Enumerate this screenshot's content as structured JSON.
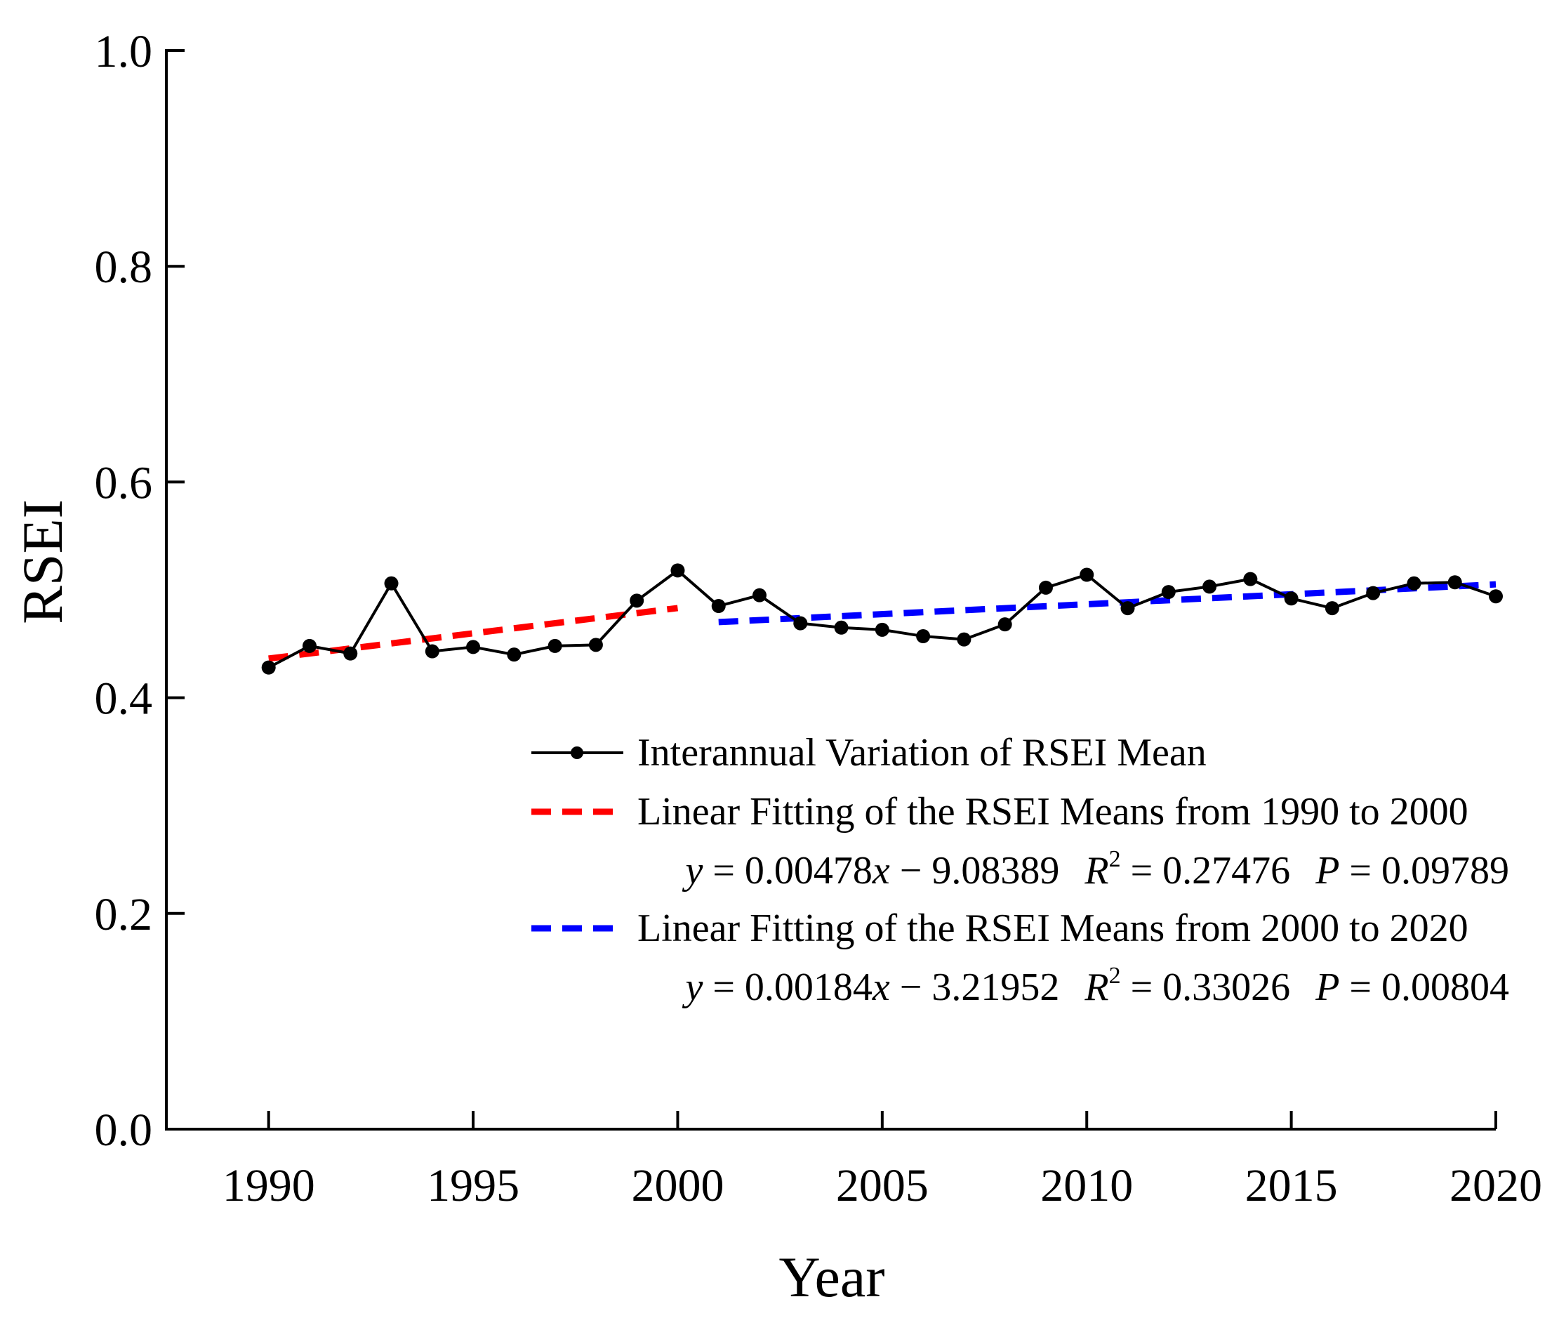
{
  "chart_data": {
    "type": "line",
    "title": "",
    "xlabel": "Year",
    "ylabel": "RSEI",
    "xlim": [
      1987.5,
      2020
    ],
    "ylim": [
      0.0,
      1.0
    ],
    "x_ticks": [
      "1990",
      "1995",
      "2000",
      "2005",
      "2010",
      "2015",
      "2020"
    ],
    "y_ticks": [
      "0.0",
      "0.2",
      "0.4",
      "0.6",
      "0.8",
      "1.0"
    ],
    "grid": false,
    "legend_position": "lower-right",
    "series": [
      {
        "name": "Interannual Variation of RSEI Mean",
        "style": "solid-with-markers",
        "color": "#000000",
        "x": [
          1990,
          1991,
          1992,
          1993,
          1994,
          1995,
          1996,
          1997,
          1998,
          1999,
          2000,
          2001,
          2002,
          2003,
          2004,
          2005,
          2006,
          2007,
          2008,
          2009,
          2010,
          2011,
          2012,
          2013,
          2014,
          2015,
          2016,
          2017,
          2018,
          2019,
          2020
        ],
        "values": [
          0.428,
          0.448,
          0.441,
          0.506,
          0.443,
          0.447,
          0.44,
          0.448,
          0.449,
          0.49,
          0.518,
          0.485,
          0.495,
          0.469,
          0.465,
          0.463,
          0.457,
          0.454,
          0.468,
          0.502,
          0.514,
          0.483,
          0.498,
          0.503,
          0.51,
          0.492,
          0.483,
          0.497,
          0.506,
          0.507,
          0.494
        ]
      },
      {
        "name": "Linear Fitting of the RSEI Means from 1990 to 2000",
        "style": "dashed",
        "color": "#ff0000",
        "x": [
          1990,
          2000
        ],
        "values": [
          0.4363,
          0.4831
        ],
        "equation": {
          "y": "y",
          "x": "x",
          "formula": " = 0.00478",
          "intercept": " − 9.08389",
          "r_label": "R",
          "r_sup": "2",
          "r_value": " = 0.27476",
          "p_label": "P",
          "p_value": " = 0.09789"
        }
      },
      {
        "name": "Linear Fitting of the RSEI Means from 2000 to 2020",
        "style": "dashed",
        "color": "#0000ff",
        "x": [
          2001,
          2020
        ],
        "values": [
          0.4701,
          0.5051
        ],
        "equation": {
          "y": "y",
          "x": "x",
          "formula": " = 0.00184",
          "intercept": " − 3.21952",
          "r_label": "R",
          "r_sup": "2",
          "r_value": " = 0.33026",
          "p_label": "P",
          "p_value": " = 0.00804"
        }
      }
    ]
  }
}
